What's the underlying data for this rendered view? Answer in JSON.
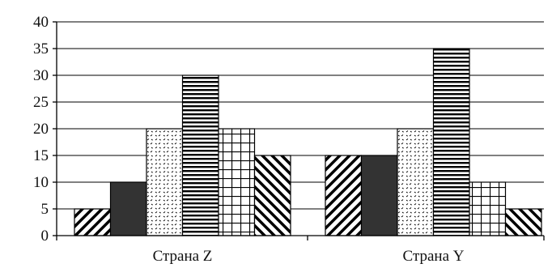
{
  "chart_data": {
    "type": "bar",
    "categories": [
      "Страна Z",
      "Страна Y"
    ],
    "series": [
      {
        "pattern": "diag-up",
        "values": [
          5,
          15
        ]
      },
      {
        "pattern": "solid",
        "values": [
          10,
          15
        ]
      },
      {
        "pattern": "dots",
        "values": [
          20,
          20
        ]
      },
      {
        "pattern": "hlines",
        "values": [
          30,
          35
        ]
      },
      {
        "pattern": "grid",
        "values": [
          20,
          10
        ]
      },
      {
        "pattern": "diag-down",
        "values": [
          15,
          5
        ]
      }
    ],
    "yticks": [
      0,
      5,
      10,
      15,
      20,
      25,
      30,
      35,
      40
    ],
    "ylim": [
      0,
      40
    ],
    "grid": true,
    "legend": "none",
    "colors": {
      "bar_fill": "#ffffff",
      "stroke": "#000000",
      "solid": "#333333"
    }
  }
}
